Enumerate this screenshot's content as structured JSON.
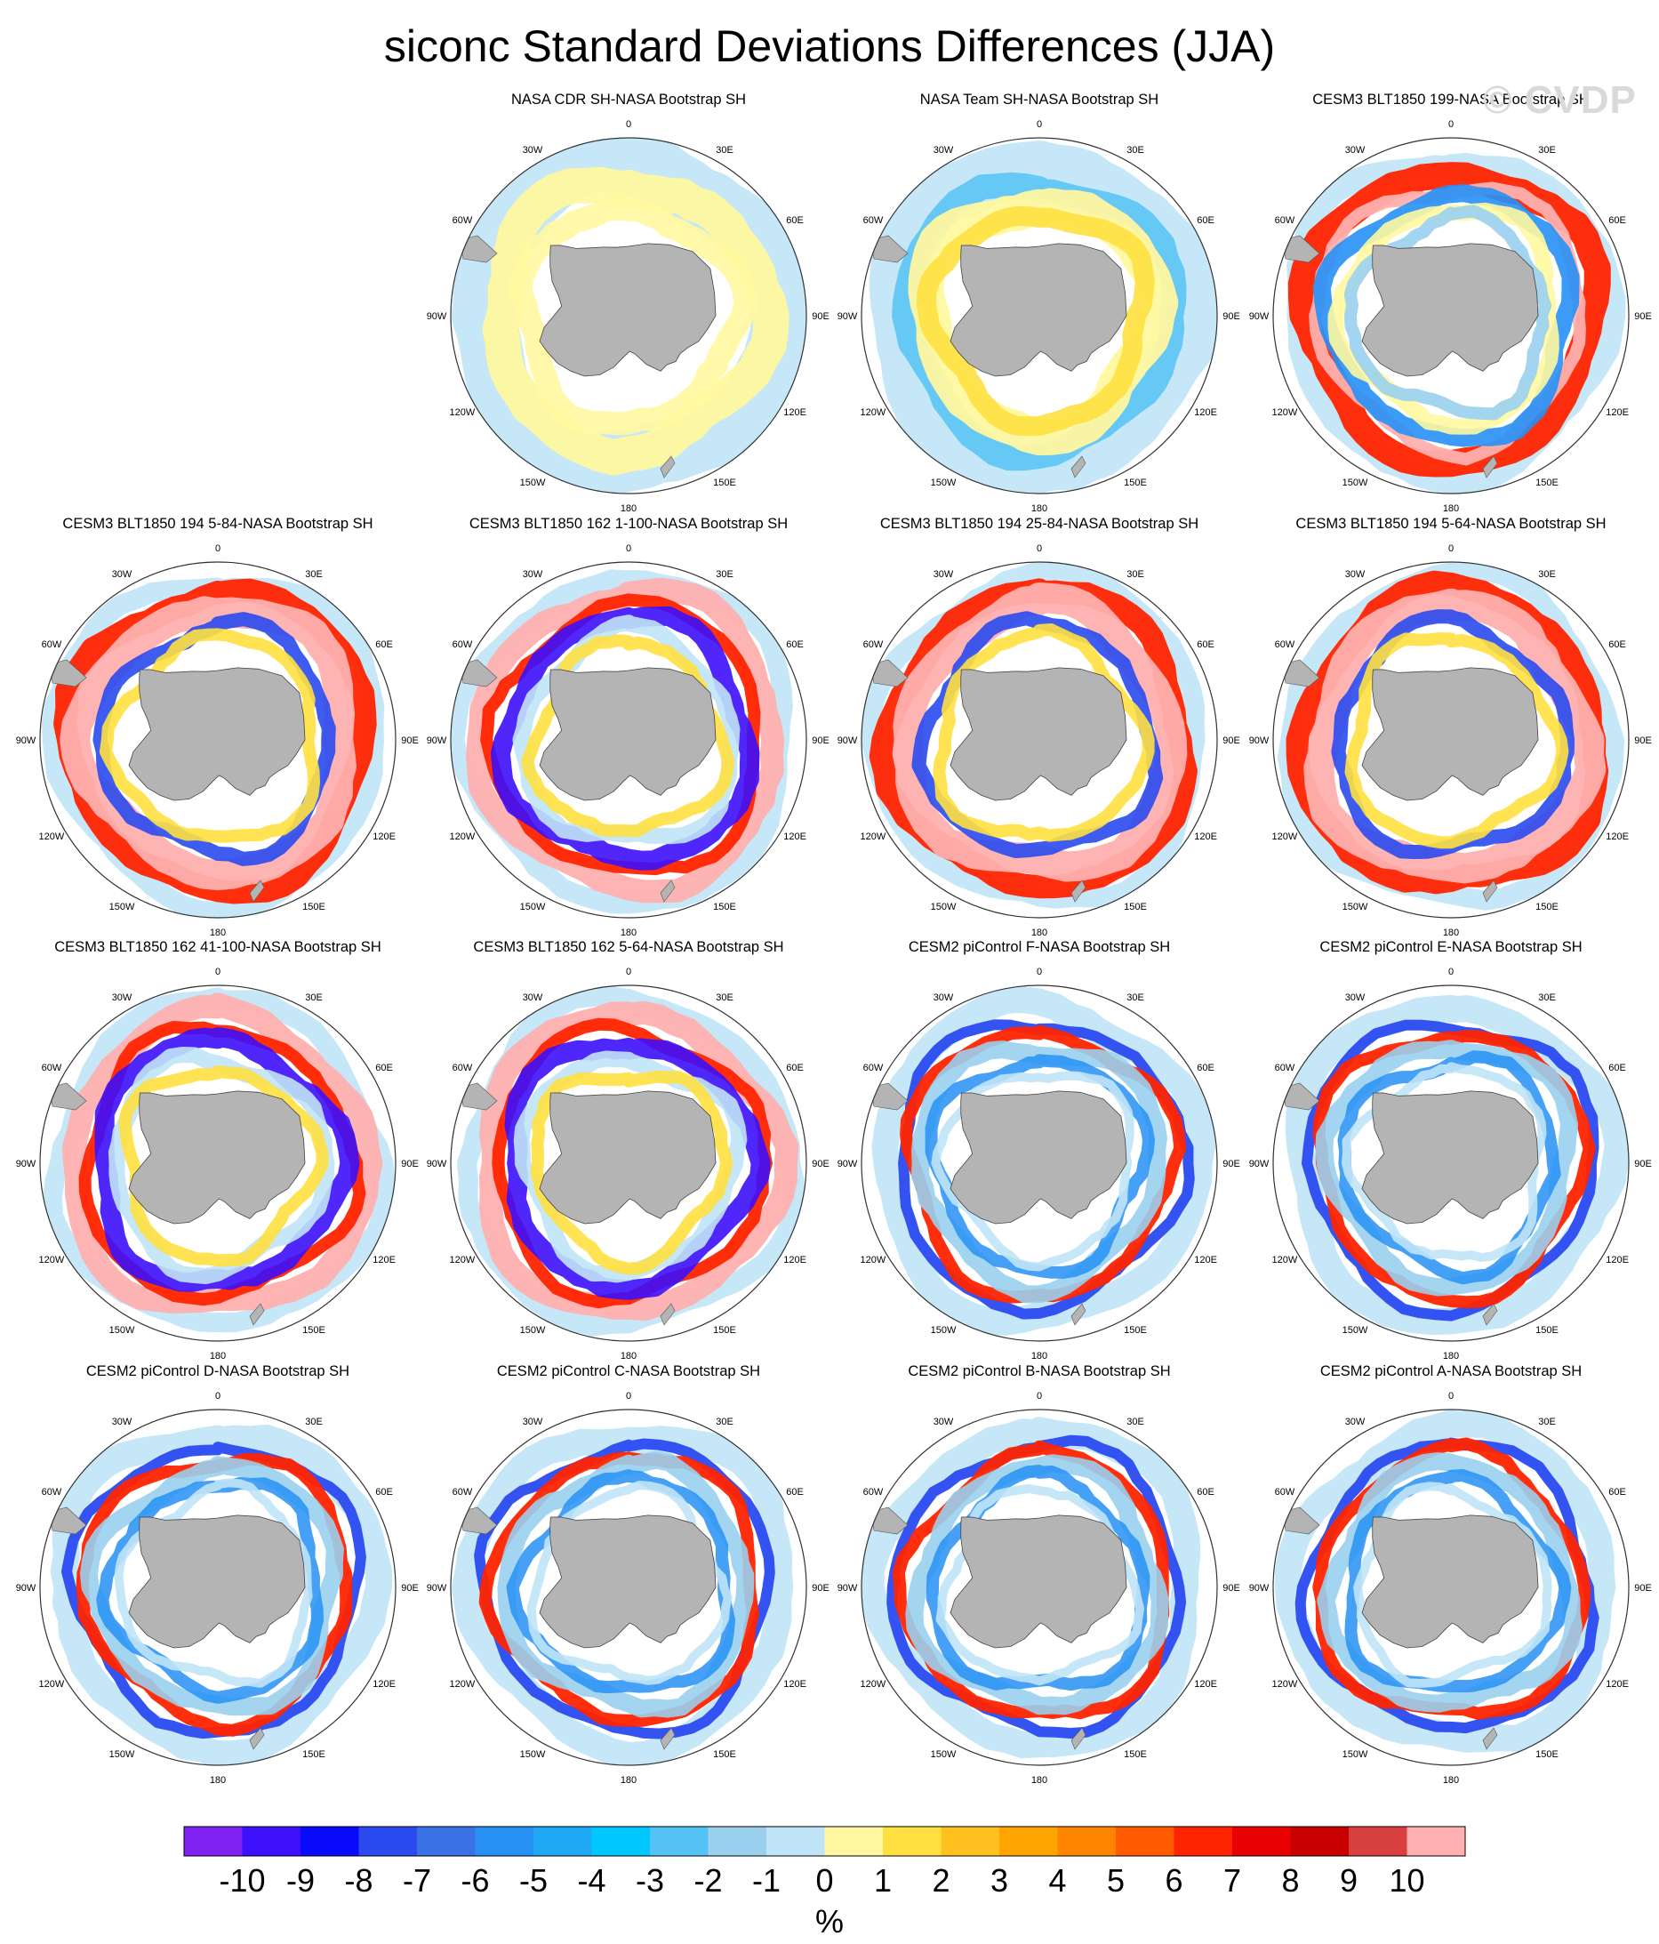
{
  "title": "siconc Standard Deviations Differences (JJA)",
  "watermark": "© CVDP",
  "chart_data": {
    "type": "heatmap",
    "projection": "south-polar-stereographic",
    "variable": "siconc",
    "season": "JJA",
    "units": "%",
    "longitude_labels": [
      "0",
      "30E",
      "60E",
      "90E",
      "120E",
      "150E",
      "180",
      "150W",
      "120W",
      "90W",
      "60W",
      "30W"
    ],
    "colorbar": {
      "ticks": [
        "-10",
        "-9",
        "-8",
        "-7",
        "-6",
        "-5",
        "-4",
        "-3",
        "-2",
        "-1",
        "0",
        "1",
        "2",
        "3",
        "4",
        "5",
        "6",
        "7",
        "8",
        "9",
        "10"
      ],
      "label": "%",
      "colors": [
        "#7f22f0",
        "#3c10fa",
        "#0a0afa",
        "#2a4af0",
        "#3a72e6",
        "#2690f5",
        "#1ea8f5",
        "#00c8ff",
        "#55c2f5",
        "#9ad0ee",
        "#c0e4f7",
        "#fff8a0",
        "#ffe040",
        "#ffc020",
        "#ffa400",
        "#ff8400",
        "#ff5a00",
        "#ff2400",
        "#e80000",
        "#c80000",
        "#d84040",
        "#ffb0b0"
      ]
    },
    "panels": [
      {
        "title": "NASA CDR SH-NASA Bootstrap SH",
        "pattern": "light"
      },
      {
        "title": "NASA Team SH-NASA Bootstrap SH",
        "pattern": "team"
      },
      {
        "title": "CESM3 BLT1850 199-NASA Bootstrap SH",
        "pattern": "cesm3"
      },
      {
        "title": "CESM3 BLT1850 194 5-84-NASA Bootstrap SH",
        "pattern": "cesm3b"
      },
      {
        "title": "CESM3 BLT1850 162 1-100-NASA Bootstrap SH",
        "pattern": "cesm3c"
      },
      {
        "title": "CESM3 BLT1850 194 25-84-NASA Bootstrap SH",
        "pattern": "cesm3b"
      },
      {
        "title": "CESM3 BLT1850 194 5-64-NASA Bootstrap SH",
        "pattern": "cesm3b"
      },
      {
        "title": "CESM3 BLT1850 162 41-100-NASA Bootstrap SH",
        "pattern": "cesm3c"
      },
      {
        "title": "CESM3 BLT1850 162 5-64-NASA Bootstrap SH",
        "pattern": "cesm3c"
      },
      {
        "title": "CESM2 piControl F-NASA Bootstrap SH",
        "pattern": "cesm2"
      },
      {
        "title": "CESM2 piControl E-NASA Bootstrap SH",
        "pattern": "cesm2"
      },
      {
        "title": "CESM2 piControl D-NASA Bootstrap SH",
        "pattern": "cesm2"
      },
      {
        "title": "CESM2 piControl C-NASA Bootstrap SH",
        "pattern": "cesm2"
      },
      {
        "title": "CESM2 piControl B-NASA Bootstrap SH",
        "pattern": "cesm2"
      },
      {
        "title": "CESM2 piControl A-NASA Bootstrap SH",
        "pattern": "cesm2"
      }
    ]
  }
}
